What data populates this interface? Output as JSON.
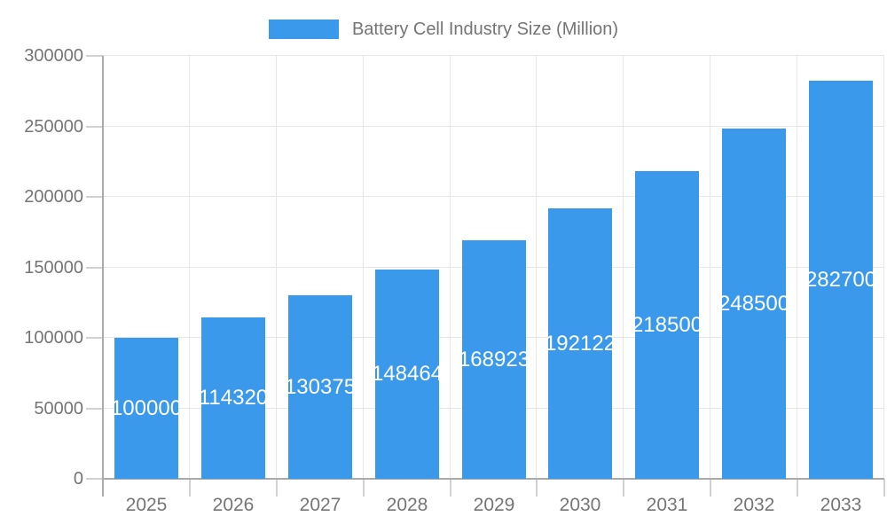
{
  "chart_data": {
    "type": "bar",
    "title": "Battery Cell Industry Size (Million)",
    "legend": {
      "position": "top",
      "entries": [
        "Battery Cell Industry Size (Million)"
      ]
    },
    "categories": [
      "2025",
      "2026",
      "2027",
      "2028",
      "2029",
      "2030",
      "2031",
      "2032",
      "2033"
    ],
    "series": [
      {
        "name": "Battery Cell Industry Size (Million)",
        "values": [
          100000,
          114320,
          130375,
          148464,
          168923,
          192122,
          218500,
          248500,
          282700
        ]
      }
    ],
    "xlabel": "",
    "ylabel": "",
    "ylim": [
      0,
      300000
    ],
    "yticks": [
      0,
      50000,
      100000,
      150000,
      200000,
      250000,
      300000
    ],
    "grid": true,
    "data_labels_position": "inside-center",
    "colors": {
      "bar": "#3b99ec",
      "bar_label_text": "#ffffff",
      "axis_text": "#757575",
      "gridline": "#e6e6e6",
      "axis_line": "#aaaaaa",
      "tick": "#d2d2d2",
      "background": "#ffffff"
    }
  }
}
